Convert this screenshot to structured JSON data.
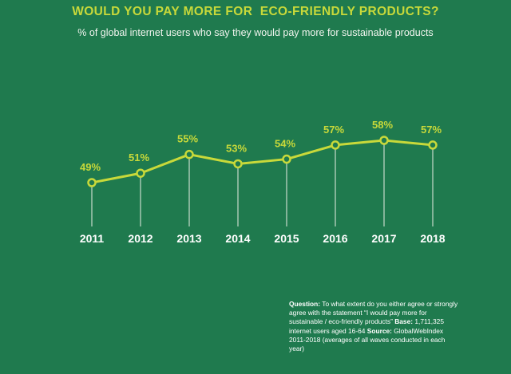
{
  "header": {
    "title": "WOULD YOU PAY MORE FOR  ECO-FRIENDLY PRODUCTS?",
    "subtitle": "% of global internet users who say they would pay more for sustainable products"
  },
  "chart_data": {
    "type": "line",
    "title": "WOULD YOU PAY MORE FOR  ECO-FRIENDLY PRODUCTS?",
    "subtitle": "% of global internet users who say they would pay more for sustainable products",
    "categories": [
      "2011",
      "2012",
      "2013",
      "2014",
      "2015",
      "2016",
      "2017",
      "2018"
    ],
    "values": [
      49,
      51,
      55,
      53,
      54,
      57,
      58,
      57
    ],
    "value_labels": [
      "49%",
      "51%",
      "55%",
      "53%",
      "54%",
      "57%",
      "58%",
      "57%"
    ],
    "xlabel": "",
    "ylabel": "",
    "grid": false,
    "line_color": "#c8d93a",
    "drop_line_color": "#e8efe4",
    "label_color": "#c8d93a",
    "tick_label_color": "#ffffff"
  },
  "footnote": {
    "question_label": "Question:",
    "question_text": " To what extent do you either agree or strongly agree with the statement “I would pay more for sustainable / eco-friendly products” ",
    "base_label": "Base:",
    "base_text": " 1,711,325 internet users aged 16-64 ",
    "source_label": "Source:",
    "source_text": " GlobalWebIndex 2011-2018 (averages of all waves conducted in each year)"
  },
  "colors": {
    "background": "#1f7a4e",
    "accent": "#c8d93a"
  }
}
